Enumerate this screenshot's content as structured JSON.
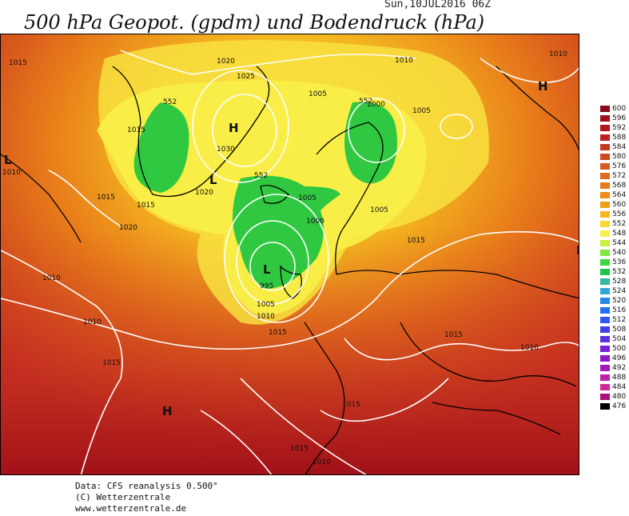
{
  "header": {
    "title": "500 hPa Geopot. (gpdm) und Bodendruck (hPa)",
    "date": "Sun,10JUL2016 06Z"
  },
  "footer": {
    "line1": "Data: CFS reanalysis 0.500°",
    "line2": "(C) Wetterzentrale",
    "line3": "www.wetterzentrale.de"
  },
  "colorbar": {
    "levels": [
      "600",
      "596",
      "592",
      "588",
      "584",
      "580",
      "576",
      "572",
      "568",
      "564",
      "560",
      "556",
      "552",
      "548",
      "544",
      "540",
      "536",
      "532",
      "528",
      "524",
      "520",
      "516",
      "512",
      "508",
      "504",
      "500",
      "496",
      "492",
      "488",
      "484",
      "480",
      "476"
    ],
    "colors": [
      "#8b0a1a",
      "#a01018",
      "#b0181c",
      "#c02020",
      "#c83820",
      "#d04820",
      "#d85a20",
      "#e06a1e",
      "#e87c1a",
      "#f08a18",
      "#f0a018",
      "#f4b820",
      "#f8d830",
      "#f8f048",
      "#c8f040",
      "#80e840",
      "#40d840",
      "#20c848",
      "#30b8a0",
      "#30a8d8",
      "#2888e8",
      "#2070f0",
      "#3058f0",
      "#4040e8",
      "#6030e0",
      "#7a20d8",
      "#9018c8",
      "#a818b8",
      "#c020a8",
      "#d02898",
      "#b0107a",
      "#000000"
    ]
  },
  "map_labels": {
    "isobars": [
      "1015",
      "1020",
      "1025",
      "1030",
      "1020",
      "1015",
      "1010",
      "1015",
      "1020",
      "1015",
      "1010",
      "1005",
      "1000",
      "995",
      "1005",
      "1010",
      "1015",
      "1010",
      "1005",
      "1000",
      "1005",
      "1010",
      "1005",
      "1015",
      "1015",
      "1010",
      "1015",
      "1015",
      "1010",
      "1015",
      "1010"
    ],
    "heights": [
      "552",
      "552",
      "552"
    ],
    "centers": [
      "H",
      "L",
      "H",
      "L",
      "L",
      "H",
      "H"
    ]
  },
  "colors": {
    "accent_red": "#b0181c",
    "contour": "#ffffff"
  }
}
